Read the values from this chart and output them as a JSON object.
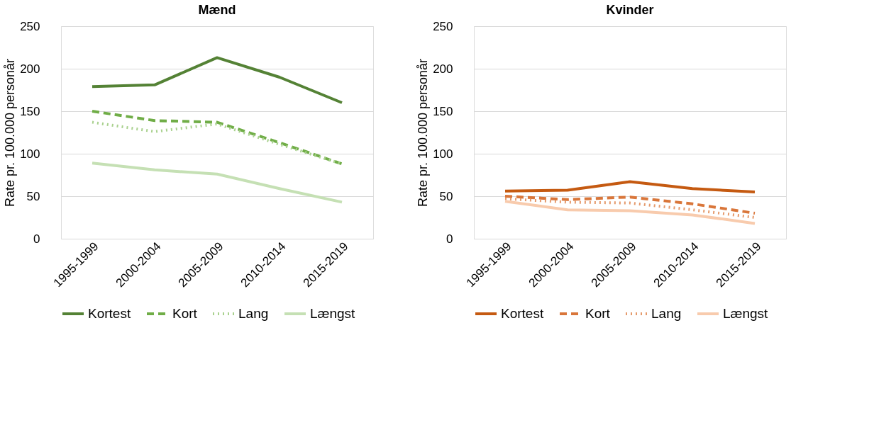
{
  "chart_data": [
    {
      "type": "line",
      "title": "Mænd",
      "ylabel": "Rate pr. 100.000 personår",
      "categories": [
        "1995-1999",
        "2000-2004",
        "2005-2009",
        "2010-2014",
        "2015-2019"
      ],
      "ylim": [
        0,
        250
      ],
      "yticks": [
        0,
        50,
        100,
        150,
        200,
        250
      ],
      "grid": "y",
      "legend": "bottom",
      "marker": "none",
      "series": [
        {
          "name": "Kortest",
          "color": "#548235",
          "line_style": "solid",
          "values": [
            179,
            181,
            213,
            190,
            160
          ]
        },
        {
          "name": "Kort",
          "color": "#70ad47",
          "line_style": "dashed",
          "values": [
            150,
            139,
            137,
            113,
            88
          ]
        },
        {
          "name": "Lang",
          "color": "#a9d18e",
          "line_style": "dotted",
          "values": [
            137,
            126,
            135,
            111,
            88
          ]
        },
        {
          "name": "Længst",
          "color": "#c5e0b4",
          "line_style": "solid",
          "values": [
            89,
            81,
            76,
            59,
            43
          ]
        }
      ]
    },
    {
      "type": "line",
      "title": "Kvinder",
      "ylabel": "Rate pr. 100.000 personår",
      "categories": [
        "1995-1999",
        "2000-2004",
        "2005-2009",
        "2010-2014",
        "2015-2019"
      ],
      "ylim": [
        0,
        250
      ],
      "yticks": [
        0,
        50,
        100,
        150,
        200,
        250
      ],
      "grid": "y",
      "legend": "bottom",
      "marker": "none",
      "series": [
        {
          "name": "Kortest",
          "color": "#c55a11",
          "line_style": "solid",
          "values": [
            56,
            57,
            67,
            59,
            55
          ]
        },
        {
          "name": "Kort",
          "color": "#d9763a",
          "line_style": "dashed",
          "values": [
            50,
            46,
            49,
            41,
            30
          ]
        },
        {
          "name": "Lang",
          "color": "#e59a6c",
          "line_style": "dotted",
          "values": [
            47,
            43,
            42,
            34,
            25
          ]
        },
        {
          "name": "Længst",
          "color": "#f8cbad",
          "line_style": "solid",
          "values": [
            44,
            34,
            33,
            28,
            18
          ]
        }
      ]
    }
  ]
}
